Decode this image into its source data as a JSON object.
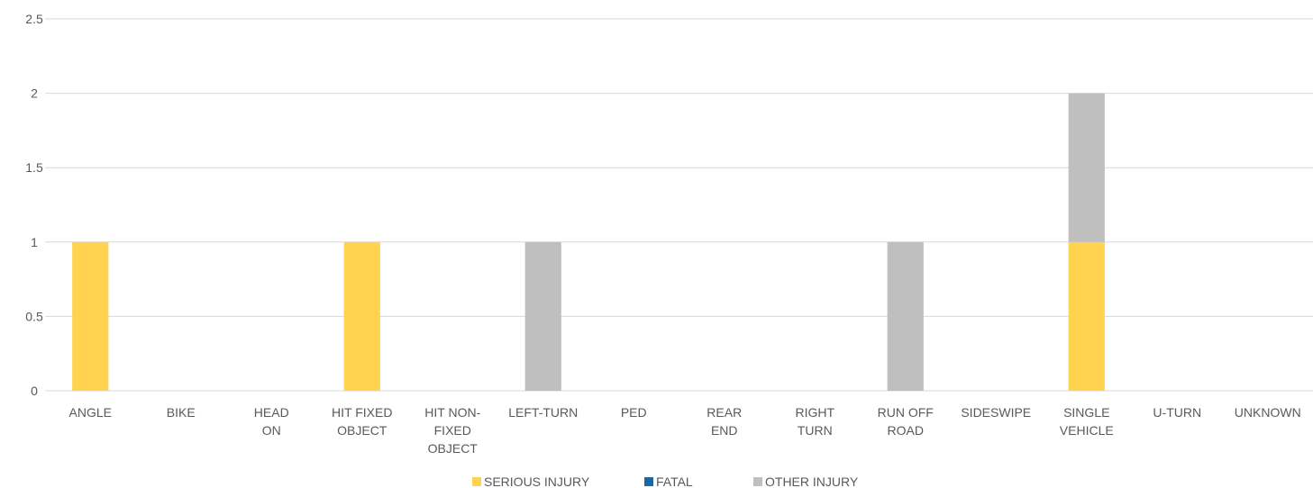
{
  "chart_data": {
    "type": "bar",
    "stacked": true,
    "categories": [
      [
        "ANGLE"
      ],
      [
        "BIKE"
      ],
      [
        "HEAD",
        "ON"
      ],
      [
        "HIT FIXED",
        "OBJECT"
      ],
      [
        "HIT NON-",
        "FIXED",
        "OBJECT"
      ],
      [
        "LEFT-TURN"
      ],
      [
        "PED"
      ],
      [
        "REAR",
        "END"
      ],
      [
        "RIGHT",
        "TURN"
      ],
      [
        "RUN OFF",
        "ROAD"
      ],
      [
        "SIDESWIPE"
      ],
      [
        "SINGLE",
        "VEHICLE"
      ],
      [
        "U-TURN"
      ],
      [
        "UNKNOWN"
      ]
    ],
    "series": [
      {
        "name": "SERIOUS INJURY",
        "color": "#ffd34f",
        "values": [
          1,
          0,
          0,
          1,
          0,
          0,
          0,
          0,
          0,
          0,
          0,
          1,
          0,
          0
        ]
      },
      {
        "name": "FATAL",
        "color": "#1a67a3",
        "values": [
          0,
          0,
          0,
          0,
          0,
          0,
          0,
          0,
          0,
          0,
          0,
          0,
          0,
          0
        ]
      },
      {
        "name": "OTHER INJURY",
        "color": "#bfbfbf",
        "values": [
          0,
          0,
          0,
          0,
          0,
          1,
          0,
          0,
          0,
          1,
          0,
          1,
          0,
          0
        ]
      }
    ],
    "yticks": [
      "0",
      "0.5",
      "1",
      "1.5",
      "2",
      "2.5"
    ],
    "ylim": [
      0,
      2.5
    ],
    "grid": true,
    "legend": "bottom",
    "title": "",
    "xlabel": "",
    "ylabel": ""
  }
}
